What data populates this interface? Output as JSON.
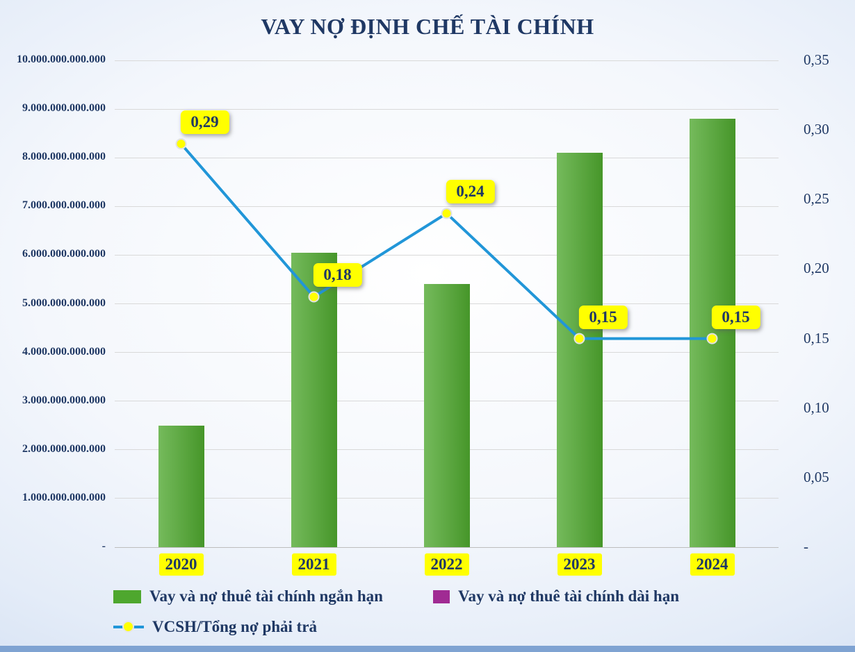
{
  "chart_data": {
    "type": "combo",
    "title": "VAY NỢ ĐỊNH CHẾ TÀI CHÍNH",
    "categories": [
      "2020",
      "2021",
      "2022",
      "2023",
      "2024"
    ],
    "series": [
      {
        "name": "Vay và nợ thuê tài chính ngắn hạn",
        "type": "bar",
        "axis": "left",
        "color": "#4ea72e",
        "values": [
          2500000000000,
          6050000000000,
          5400000000000,
          8100000000000,
          8800000000000
        ]
      },
      {
        "name": "Vay và nợ thuê tài chính dài hạn",
        "type": "bar",
        "axis": "left",
        "color": "#a02b93",
        "values": [
          0,
          0,
          0,
          0,
          0
        ]
      },
      {
        "name": "VCSH/Tổng nợ phải trả",
        "type": "line",
        "axis": "right",
        "color": "#2196d8",
        "marker_color": "#ffff00",
        "values": [
          0.29,
          0.18,
          0.24,
          0.15,
          0.15
        ],
        "point_labels": [
          "0,29",
          "0,18",
          "0,24",
          "0,15",
          "0,15"
        ]
      }
    ],
    "left_axis": {
      "min": 0,
      "max": 10000000000000,
      "tick_labels": [
        "10.000.000.000.000",
        "9.000.000.000.000",
        "8.000.000.000.000",
        "7.000.000.000.000",
        "6.000.000.000.000",
        "5.000.000.000.000",
        "4.000.000.000.000",
        "3.000.000.000.000",
        "2.000.000.000.000",
        "1.000.000.000.000",
        "-"
      ]
    },
    "right_axis": {
      "min": 0,
      "max": 0.35,
      "tick_labels": [
        "0,35",
        "0,30",
        "0,25",
        "0,20",
        "0,15",
        "0,10",
        "0,05",
        "-"
      ]
    },
    "grid": true,
    "legend_position": "bottom",
    "colors": {
      "text_navy": "#1f3864",
      "highlight_yellow": "#ffff00",
      "gridline_gray": "#d9d9d9",
      "background_edge_blue": "#bdd0ea"
    }
  }
}
